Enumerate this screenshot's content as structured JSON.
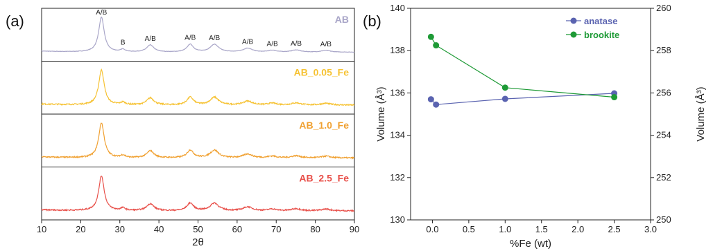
{
  "panel_labels": [
    "(a)",
    "(b)"
  ],
  "chart_data": [
    {
      "type": "line",
      "panel": "(a)",
      "xlabel": "2θ",
      "xlim": [
        10,
        90
      ],
      "xticks": [
        10,
        20,
        30,
        40,
        50,
        60,
        70,
        80,
        90
      ],
      "stacked": true,
      "peaks": [
        {
          "x": 25.3,
          "label": "A/B",
          "h": 1.0,
          "w": 0.85
        },
        {
          "x": 30.8,
          "label": "B",
          "h": 0.07,
          "w": 0.7
        },
        {
          "x": 37.8,
          "label": "A/B",
          "h": 0.2,
          "w": 1.1
        },
        {
          "x": 48.0,
          "label": "A/B",
          "h": 0.22,
          "w": 1.0
        },
        {
          "x": 54.2,
          "label": "A/B",
          "h": 0.22,
          "w": 1.3
        },
        {
          "x": 62.7,
          "label": "A/B",
          "h": 0.11,
          "w": 1.4
        },
        {
          "x": 69.0,
          "label": "A/B",
          "h": 0.05,
          "w": 1.3
        },
        {
          "x": 75.1,
          "label": "A/B",
          "h": 0.06,
          "w": 1.4
        },
        {
          "x": 82.7,
          "label": "A/B",
          "h": 0.05,
          "w": 1.4
        }
      ],
      "series": [
        {
          "name": "AB",
          "color": "#a9a6c8"
        },
        {
          "name": "AB_0.05_Fe",
          "color": "#f6c232"
        },
        {
          "name": "AB_1.0_Fe",
          "color": "#f0a030"
        },
        {
          "name": "AB_2.5_Fe",
          "color": "#e8504a"
        }
      ]
    },
    {
      "type": "scatter",
      "panel": "(b)",
      "xlabel": "%Fe (wt)",
      "xlim": [
        -0.3,
        3.0
      ],
      "xticks": [
        0.0,
        0.5,
        1.0,
        1.5,
        2.0,
        2.5,
        3.0
      ],
      "ylabel_left": "Volume (Å³)",
      "ylim_left": [
        130,
        140
      ],
      "yticks_left": [
        130,
        132,
        134,
        136,
        138,
        140
      ],
      "ylabel_right": "Volume (Å³)",
      "ylim_right": [
        250,
        260
      ],
      "yticks_right": [
        250,
        252,
        254,
        256,
        258,
        260
      ],
      "legend_position": "top-right",
      "series": [
        {
          "name": "anatase",
          "axis": "left",
          "color": "#5a63b0",
          "points": [
            [
              -0.02,
              135.7
            ],
            [
              0.05,
              135.45
            ],
            [
              1.0,
              135.72
            ],
            [
              2.5,
              135.98
            ]
          ]
        },
        {
          "name": "brookite",
          "axis": "right",
          "color": "#1e9a36",
          "points": [
            [
              -0.02,
              258.65
            ],
            [
              0.05,
              258.25
            ],
            [
              1.0,
              256.25
            ],
            [
              2.5,
              255.8
            ]
          ]
        }
      ]
    }
  ]
}
